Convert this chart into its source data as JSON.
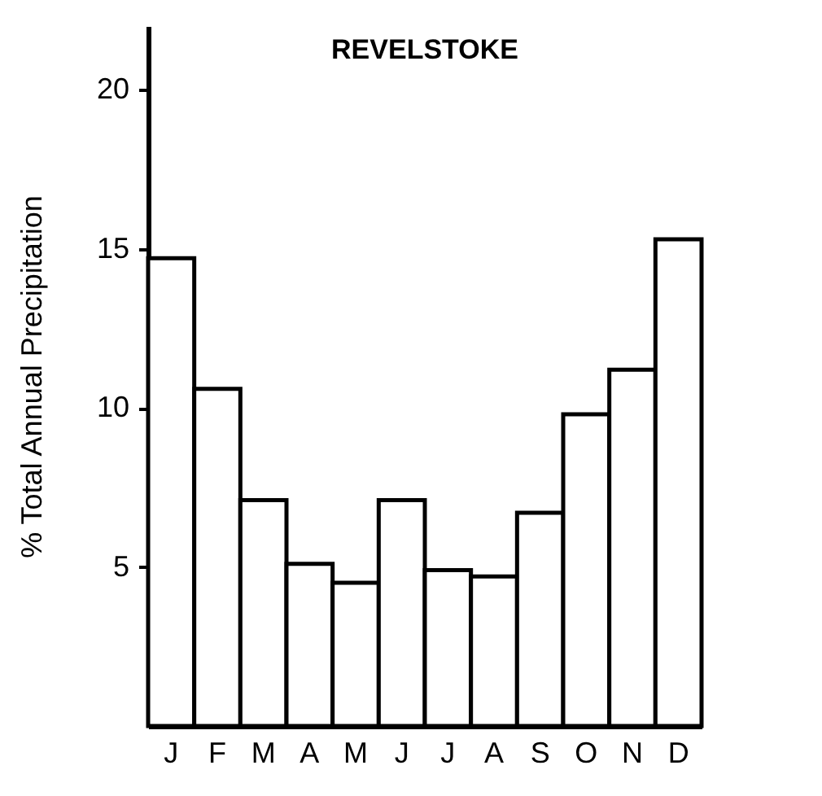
{
  "chart_data": {
    "type": "bar",
    "title": "REVELSTOKE",
    "ylabel": "% Total Annual Precipitation",
    "categories": [
      "J",
      "F",
      "M",
      "A",
      "M",
      "J",
      "J",
      "A",
      "S",
      "O",
      "N",
      "D"
    ],
    "values": [
      14.7,
      10.6,
      7.1,
      5.1,
      4.5,
      7.1,
      4.9,
      4.7,
      6.7,
      9.8,
      11.2,
      15.3
    ],
    "color": "#ffffff",
    "ylim": [
      0,
      22
    ],
    "yticks": [
      5,
      10,
      15,
      20
    ],
    "grid": false
  }
}
